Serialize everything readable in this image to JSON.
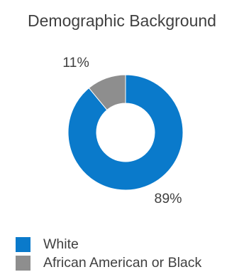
{
  "chart_data": {
    "type": "pie",
    "style": "donut",
    "title": "Demographic Background",
    "categories": [
      "White",
      "African American or Black"
    ],
    "values": [
      89,
      11
    ],
    "labels": [
      "89%",
      "11%"
    ],
    "colors": [
      "#0a7acb",
      "#8e8e8e"
    ],
    "legend": "bottom-left"
  }
}
